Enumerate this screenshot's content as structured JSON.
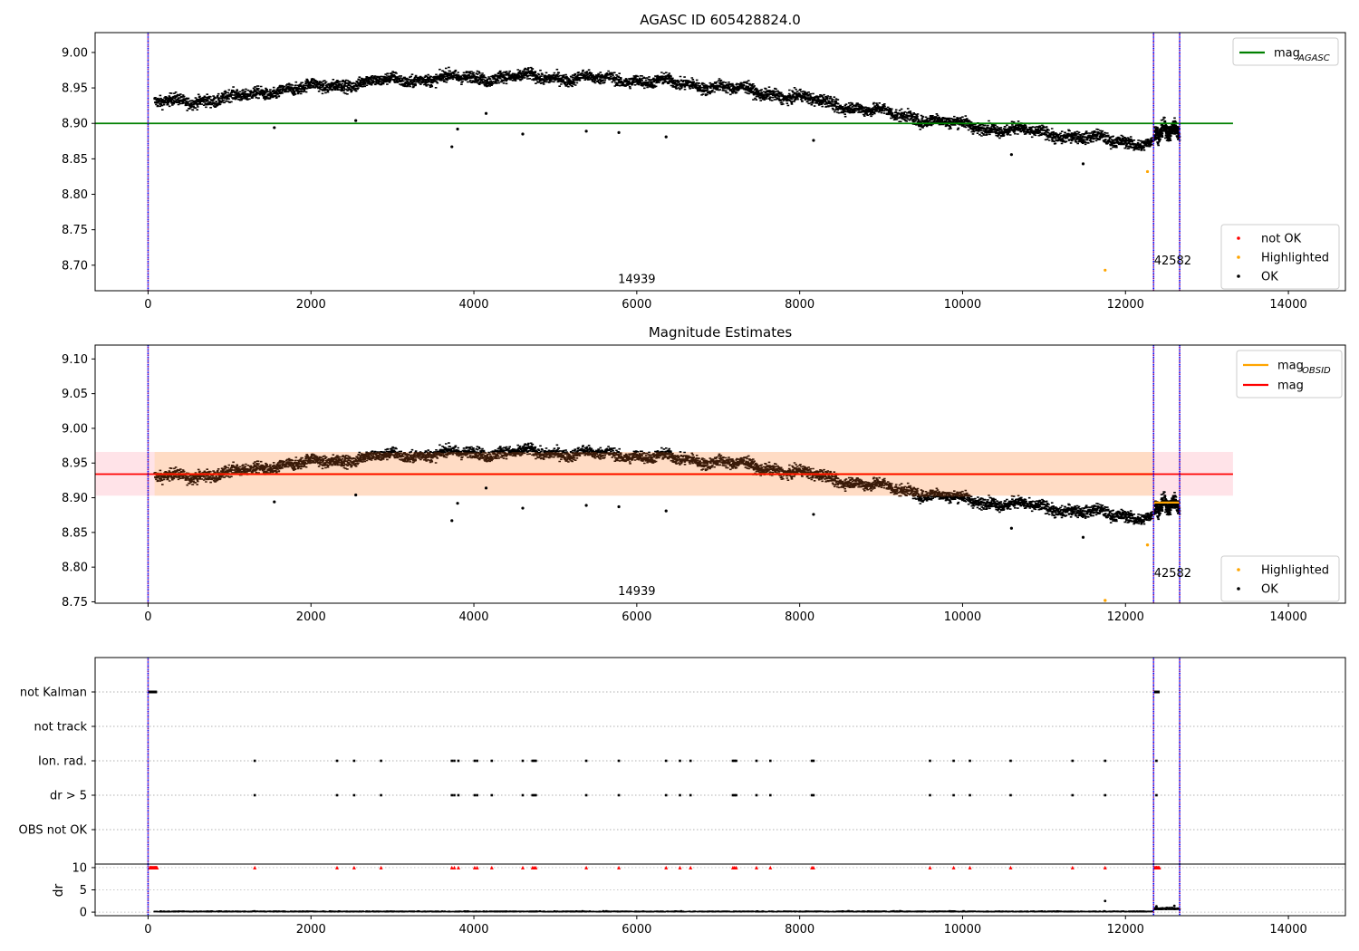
{
  "figure": {
    "title": "AGASC ID 605428824.0"
  },
  "colors": {
    "ok": "#000000",
    "highlighted": "#ffa500",
    "not_ok": "#ff0000",
    "agasc_line": "#008000",
    "mag_line": "#ff0000",
    "obsid_line": "#ffa500",
    "band_fill": "#ffc0cb",
    "obs_band_fill": "#ffdab9",
    "obs_boundary": "#800080",
    "obs_boundary_inner": "#0000ff",
    "obs_mean_dark": "#3a1a08"
  },
  "chart_data": [
    {
      "id": "top",
      "type": "scatter",
      "title": "AGASC ID 605428824.0",
      "xlim": [
        -650,
        14700
      ],
      "ylim": [
        8.664,
        9.028
      ],
      "xticks": [
        "0",
        "2000",
        "4000",
        "6000",
        "8000",
        "10000",
        "12000",
        "14000"
      ],
      "xtick_values": [
        0,
        2000,
        4000,
        6000,
        8000,
        10000,
        12000,
        14000
      ],
      "yticks": [
        "8.70",
        "8.75",
        "8.80",
        "8.85",
        "8.90",
        "8.95",
        "9.00"
      ],
      "ytick_values": [
        8.7,
        8.75,
        8.8,
        8.85,
        8.9,
        8.95,
        9.0
      ],
      "obs_boundaries": [
        0,
        12345,
        12665
      ],
      "obs_labels": [
        {
          "text": "14939",
          "x": 6000,
          "y": 8.675
        },
        {
          "text": "42582",
          "x": 12580,
          "y": 8.701
        }
      ],
      "trend": [
        [
          80,
          8.93
        ],
        [
          400,
          8.932
        ],
        [
          1000,
          8.936
        ],
        [
          1500,
          8.946
        ],
        [
          2000,
          8.952
        ],
        [
          2500,
          8.957
        ],
        [
          3000,
          8.962
        ],
        [
          4000,
          8.966
        ],
        [
          5000,
          8.966
        ],
        [
          6000,
          8.962
        ],
        [
          7000,
          8.953
        ],
        [
          8000,
          8.937
        ],
        [
          9000,
          8.917
        ],
        [
          10000,
          8.899
        ],
        [
          11000,
          8.887
        ],
        [
          12000,
          8.875
        ],
        [
          12330,
          8.873
        ],
        [
          12380,
          8.89
        ],
        [
          12665,
          8.892
        ]
      ],
      "series_ok_outliers": [
        [
          1550,
          8.894
        ],
        [
          2550,
          8.904
        ],
        [
          3730,
          8.867
        ],
        [
          3800,
          8.892
        ],
        [
          4150,
          8.914
        ],
        [
          4600,
          8.885
        ],
        [
          5380,
          8.889
        ],
        [
          5780,
          8.887
        ],
        [
          6360,
          8.881
        ],
        [
          8170,
          8.876
        ],
        [
          10600,
          8.856
        ],
        [
          11480,
          8.843
        ]
      ],
      "series_highlighted": [
        [
          11750,
          8.693
        ],
        [
          12270,
          8.832
        ]
      ],
      "agasc_mag": {
        "value": 8.9,
        "x_range": [
          -650,
          13320
        ]
      },
      "legend_upper": [
        {
          "label": "mag",
          "sub": "AGASC",
          "kind": "line",
          "color": "#008000"
        }
      ],
      "legend_lower": [
        {
          "label": "not OK",
          "color": "#ff0000"
        },
        {
          "label": "Highlighted",
          "color": "#ffa500"
        },
        {
          "label": "OK",
          "color": "#000000"
        }
      ]
    },
    {
      "id": "middle",
      "type": "scatter",
      "title": "Magnitude Estimates",
      "xlim": [
        -650,
        14700
      ],
      "ylim": [
        8.748,
        9.12
      ],
      "xticks": [
        "0",
        "2000",
        "4000",
        "6000",
        "8000",
        "10000",
        "12000",
        "14000"
      ],
      "xtick_values": [
        0,
        2000,
        4000,
        6000,
        8000,
        10000,
        12000,
        14000
      ],
      "yticks": [
        "8.75",
        "8.80",
        "8.85",
        "8.90",
        "8.95",
        "9.00",
        "9.05",
        "9.10"
      ],
      "ytick_values": [
        8.75,
        8.8,
        8.85,
        8.9,
        8.95,
        9.0,
        9.05,
        9.1
      ],
      "obs_labels": [
        {
          "text": "14939",
          "x": 6000,
          "y": 8.76
        },
        {
          "text": "42582",
          "x": 12580,
          "y": 8.786
        }
      ],
      "mag": {
        "value": 8.934,
        "lower": 8.903,
        "upper": 8.966,
        "x_range": [
          -650,
          13320
        ]
      },
      "obs_means": [
        {
          "x_range": [
            80,
            12330
          ],
          "value": 8.934,
          "lower": 8.903,
          "upper": 8.966
        },
        {
          "x_range": [
            12345,
            12665
          ],
          "value": 8.893
        }
      ],
      "series_highlighted": [
        [
          11750,
          8.752
        ],
        [
          12270,
          8.832
        ]
      ],
      "legend_upper": [
        {
          "label": "mag",
          "sub": "OBSID",
          "kind": "line",
          "color": "#ffa500"
        },
        {
          "label": "mag",
          "sub": "",
          "kind": "line",
          "color": "#ff0000"
        }
      ],
      "legend_lower": [
        {
          "label": "Highlighted",
          "color": "#ffa500"
        },
        {
          "label": "OK",
          "color": "#000000"
        }
      ]
    },
    {
      "id": "flags",
      "type": "scatter",
      "title": "",
      "categories": [
        "not Kalman",
        "not track",
        "Ion. rad.",
        "dr > 5",
        "OBS not OK"
      ],
      "not_kalman_ranges": [
        [
          0,
          110
        ],
        [
          12350,
          12420
        ]
      ],
      "event_times": [
        1310,
        2320,
        2530,
        2860,
        3730,
        3760,
        3810,
        4010,
        4040,
        4220,
        4600,
        4720,
        4740,
        4760,
        5380,
        5780,
        6360,
        6530,
        6660,
        7180,
        7200,
        7220,
        7470,
        7640,
        8150,
        8170,
        9600,
        9890,
        10090,
        10590,
        11350,
        11750,
        12380
      ]
    },
    {
      "id": "dr",
      "type": "scatter",
      "ylabel": "dr",
      "xlim": [
        -650,
        14700
      ],
      "ylim": [
        -0.8,
        10.8
      ],
      "yticks": [
        "0",
        "5",
        "10"
      ],
      "ytick_values": [
        0,
        5,
        10
      ],
      "xticks": [
        "0",
        "2000",
        "4000",
        "6000",
        "8000",
        "10000",
        "12000",
        "14000"
      ],
      "xtick_values": [
        0,
        2000,
        4000,
        6000,
        8000,
        10000,
        12000,
        14000
      ],
      "clip_value": 10,
      "outliers": [
        [
          11750,
          2.5
        ],
        [
          12380,
          1.3
        ],
        [
          12600,
          1.4
        ]
      ]
    }
  ]
}
